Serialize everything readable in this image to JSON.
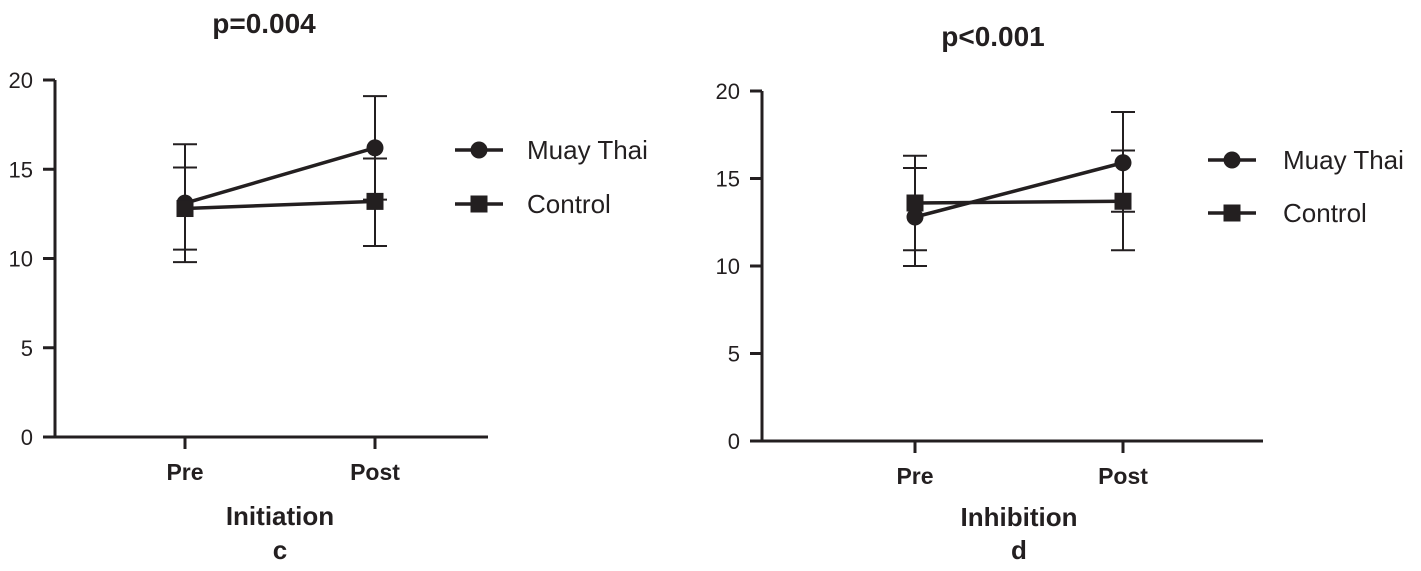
{
  "chart_data": [
    {
      "type": "line",
      "title": "p=0.004",
      "xlabel": "Initiation",
      "panel_label": "c",
      "ylabel": "",
      "categories": [
        "Pre",
        "Post"
      ],
      "ylim": [
        0,
        20
      ],
      "yticks": [
        "0",
        "5",
        "10",
        "15",
        "20"
      ],
      "grid": false,
      "legend_position": "right",
      "series": [
        {
          "name": "Muay Thai",
          "marker": "circle",
          "values": [
            13.1,
            16.2
          ],
          "err_low": [
            9.8,
            13.3
          ],
          "err_high": [
            16.4,
            19.1
          ]
        },
        {
          "name": "Control",
          "marker": "square",
          "values": [
            12.8,
            13.2
          ],
          "err_low": [
            10.5,
            10.7
          ],
          "err_high": [
            15.1,
            15.6
          ]
        }
      ]
    },
    {
      "type": "line",
      "title": "p<0.001",
      "xlabel": "Inhibition",
      "panel_label": "d",
      "ylabel": "",
      "categories": [
        "Pre",
        "Post"
      ],
      "ylim": [
        0,
        20
      ],
      "yticks": [
        "0",
        "5",
        "10",
        "15",
        "20"
      ],
      "grid": false,
      "legend_position": "right",
      "series": [
        {
          "name": "Muay Thai",
          "marker": "circle",
          "values": [
            12.8,
            15.9
          ],
          "err_low": [
            10.0,
            13.1
          ],
          "err_high": [
            15.6,
            18.8
          ]
        },
        {
          "name": "Control",
          "marker": "square",
          "values": [
            13.6,
            13.7
          ],
          "err_low": [
            10.9,
            10.9
          ],
          "err_high": [
            16.3,
            16.6
          ]
        }
      ]
    }
  ],
  "colors": {
    "ink": "#231f20"
  }
}
